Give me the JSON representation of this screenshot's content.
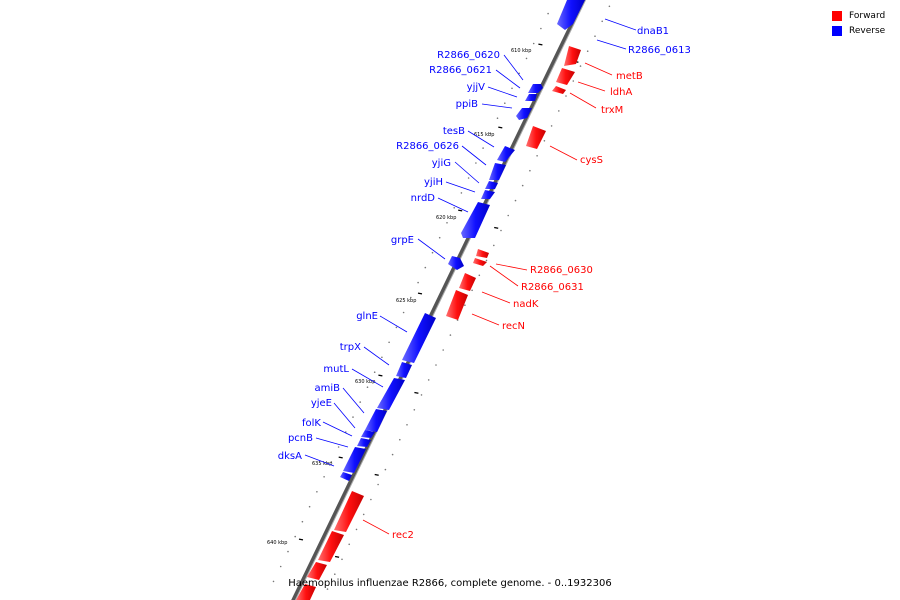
{
  "legend": {
    "forward_label": "Forward",
    "reverse_label": "Reverse",
    "forward_color": "#ff0000",
    "reverse_color": "#0000ff"
  },
  "caption": "Haemophilus influenzae R2866, complete genome. - 0..1932306",
  "scale_labels": [
    {
      "text": "610 kbp"
    },
    {
      "text": "615 kbp"
    },
    {
      "text": "620 kbp"
    },
    {
      "text": "625 kbp"
    },
    {
      "text": "630 kbp"
    },
    {
      "text": "635 kbp"
    },
    {
      "text": "640 kbp"
    }
  ],
  "genes": [
    {
      "name": "dnaB1",
      "strand": "forward_side_label_reverse"
    },
    {
      "name": "R2866_0613",
      "strand": "reverse"
    },
    {
      "name": "metB",
      "strand": "forward"
    },
    {
      "name": "ldhA",
      "strand": "forward"
    },
    {
      "name": "trxM",
      "strand": "forward"
    },
    {
      "name": "R2866_0620",
      "strand": "reverse"
    },
    {
      "name": "R2866_0621",
      "strand": "reverse"
    },
    {
      "name": "yjjV",
      "strand": "reverse"
    },
    {
      "name": "ppiB",
      "strand": "reverse"
    },
    {
      "name": "cysS",
      "strand": "forward"
    },
    {
      "name": "tesB",
      "strand": "reverse"
    },
    {
      "name": "R2866_0626",
      "strand": "reverse"
    },
    {
      "name": "yjiG",
      "strand": "reverse"
    },
    {
      "name": "yjiH",
      "strand": "reverse"
    },
    {
      "name": "nrdD",
      "strand": "reverse"
    },
    {
      "name": "grpE",
      "strand": "reverse"
    },
    {
      "name": "R2866_0630",
      "strand": "forward"
    },
    {
      "name": "R2866_0631",
      "strand": "forward"
    },
    {
      "name": "nadK",
      "strand": "forward"
    },
    {
      "name": "recN",
      "strand": "forward"
    },
    {
      "name": "glnE",
      "strand": "reverse"
    },
    {
      "name": "trpX",
      "strand": "reverse"
    },
    {
      "name": "mutL",
      "strand": "reverse"
    },
    {
      "name": "amiB",
      "strand": "reverse"
    },
    {
      "name": "yjeE",
      "strand": "reverse"
    },
    {
      "name": "folK",
      "strand": "reverse"
    },
    {
      "name": "pcnB",
      "strand": "reverse"
    },
    {
      "name": "dksA",
      "strand": "reverse"
    },
    {
      "name": "rec2",
      "strand": "forward"
    }
  ]
}
